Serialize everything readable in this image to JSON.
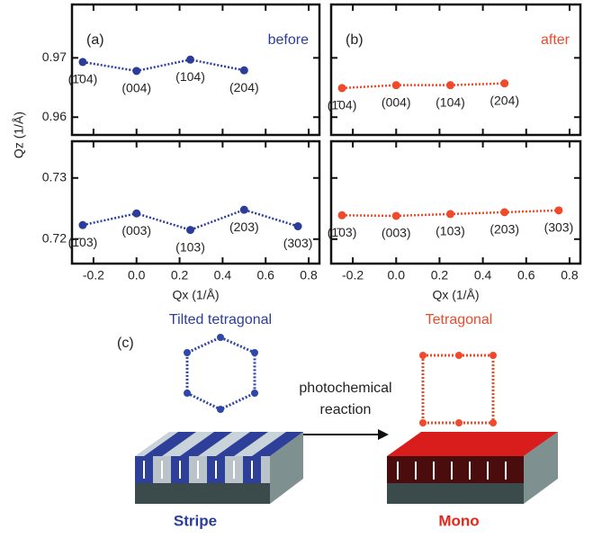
{
  "chart_data": [
    {
      "type": "line",
      "panel_label": "(a)",
      "tag": "before",
      "y_label": "Qz (1/Å)",
      "color": "#2b3d9c",
      "x": [
        -0.25,
        0,
        0.25,
        0.5
      ],
      "values": [
        0.9693,
        0.9678,
        0.9697,
        0.9679
      ],
      "point_labels": [
        "(1̄04)",
        "(004)",
        "(104)",
        "(204)"
      ],
      "xlim": [
        -0.3,
        0.85
      ],
      "ylim": [
        0.957,
        0.979
      ],
      "yticks": [
        0.96,
        0.97
      ],
      "xticks": [
        -0.2,
        {
          "value": 0,
          "label": "0.0"
        },
        0.2,
        0.4,
        0.6,
        0.8
      ]
    },
    {
      "type": "line",
      "color": "#2b3d9c",
      "x_label": "Qx (1/Å)",
      "x": [
        -0.25,
        0,
        0.25,
        0.5,
        0.75
      ],
      "values": [
        0.7223,
        0.7242,
        0.7215,
        0.7248,
        0.7221
      ],
      "point_labels": [
        "(1̄03)",
        "(003)",
        "(103)",
        "(203)",
        "(303)"
      ],
      "xlim": [
        -0.3,
        0.85
      ],
      "ylim": [
        0.716,
        0.736
      ],
      "yticks": [
        0.72,
        0.73
      ],
      "xticks": [
        -0.2,
        {
          "value": 0,
          "label": "0.0"
        },
        0.2,
        0.4,
        0.6,
        0.8
      ]
    },
    {
      "type": "line",
      "panel_label": "(b)",
      "tag": "after",
      "color": "#f04a2b",
      "x": [
        -0.25,
        0,
        0.25,
        0.5
      ],
      "values": [
        0.9649,
        0.9654,
        0.9654,
        0.9657
      ],
      "point_labels": [
        "(1̄04)",
        "(004)",
        "(104)",
        "(204)"
      ],
      "xlim": [
        -0.3,
        0.85
      ],
      "ylim": [
        0.957,
        0.979
      ],
      "yticks": [
        0.96,
        0.97
      ],
      "xticks": [
        -0.2,
        {
          "value": 0,
          "label": "0.0"
        },
        0.2,
        0.4,
        0.6,
        0.8
      ]
    },
    {
      "type": "line",
      "color": "#f04a2b",
      "x_label": "Qx (1/Å)",
      "x": [
        -0.25,
        0,
        0.25,
        0.5,
        0.75
      ],
      "values": [
        0.7239,
        0.7238,
        0.7241,
        0.7244,
        0.7247
      ],
      "point_labels": [
        "(1̄03)",
        "(003)",
        "(103)",
        "(203)",
        "(303)"
      ],
      "xlim": [
        -0.3,
        0.85
      ],
      "ylim": [
        0.716,
        0.736
      ],
      "yticks": [
        0.72,
        0.73
      ],
      "xticks": [
        -0.2,
        {
          "value": 0,
          "label": "0.0"
        },
        0.2,
        0.4,
        0.6,
        0.8
      ]
    }
  ],
  "diagram": {
    "label": "(c)",
    "left_title": "Tilted tetragonal",
    "right_title": "Tetragonal",
    "arrow_text": [
      "photochemical",
      "reaction"
    ],
    "left_caption": "Stripe",
    "right_caption": "Mono"
  }
}
